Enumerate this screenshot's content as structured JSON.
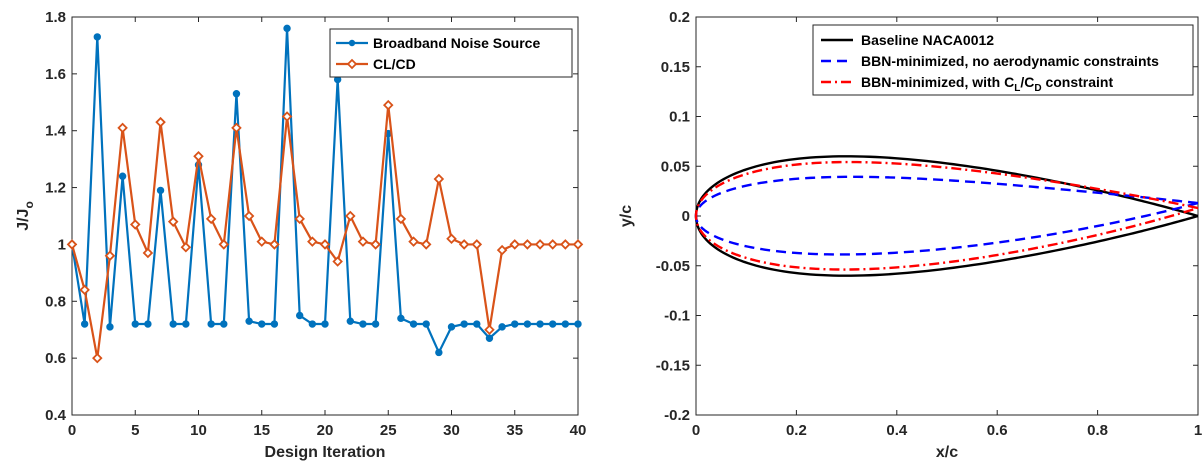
{
  "chart_data": [
    {
      "type": "line",
      "xlabel": "Design Iteration",
      "ylabel": "J/J",
      "ylabel_sub": "o",
      "xlim": [
        0,
        40
      ],
      "ylim": [
        0.4,
        1.8
      ],
      "xticks": [
        "0",
        "5",
        "10",
        "15",
        "20",
        "25",
        "30",
        "35",
        "40"
      ],
      "yticks": [
        "0.4",
        "0.6",
        "0.8",
        "1",
        "1.2",
        "1.4",
        "1.6",
        "1.8"
      ],
      "legend_position": "top-right",
      "series": [
        {
          "name": "Broadband Noise Source",
          "color": "#0072BD",
          "marker": "circle",
          "x": [
            0,
            1,
            2,
            3,
            4,
            5,
            6,
            7,
            8,
            9,
            10,
            11,
            12,
            13,
            14,
            15,
            16,
            17,
            18,
            19,
            20,
            21,
            22,
            23,
            24,
            25,
            26,
            27,
            28,
            29,
            30,
            31,
            32,
            33,
            34,
            35,
            36,
            37,
            38,
            39,
            40
          ],
          "values": [
            1.0,
            0.72,
            1.73,
            0.71,
            1.24,
            0.72,
            0.72,
            1.19,
            0.72,
            0.72,
            1.28,
            0.72,
            0.72,
            1.53,
            0.73,
            0.72,
            0.72,
            1.76,
            0.75,
            0.72,
            0.72,
            1.58,
            0.73,
            0.72,
            0.72,
            1.39,
            0.74,
            0.72,
            0.72,
            0.62,
            0.71,
            0.72,
            0.72,
            0.67,
            0.71,
            0.72,
            0.72,
            0.72,
            0.72,
            0.72,
            0.72
          ]
        },
        {
          "name": "CL/CD",
          "color": "#D95319",
          "marker": "diamond",
          "x": [
            0,
            1,
            2,
            3,
            4,
            5,
            6,
            7,
            8,
            9,
            10,
            11,
            12,
            13,
            14,
            15,
            16,
            17,
            18,
            19,
            20,
            21,
            22,
            23,
            24,
            25,
            26,
            27,
            28,
            29,
            30,
            31,
            32,
            33,
            34,
            35,
            36,
            37,
            38,
            39,
            40
          ],
          "values": [
            1.0,
            0.84,
            0.6,
            0.96,
            1.41,
            1.07,
            0.97,
            1.43,
            1.08,
            0.99,
            1.31,
            1.09,
            1.0,
            1.41,
            1.1,
            1.01,
            1.0,
            1.45,
            1.09,
            1.01,
            1.0,
            0.94,
            1.1,
            1.01,
            1.0,
            1.49,
            1.09,
            1.01,
            1.0,
            1.23,
            1.02,
            1.0,
            1.0,
            0.7,
            0.98,
            1.0,
            1.0,
            1.0,
            1.0,
            1.0,
            1.0
          ]
        }
      ]
    },
    {
      "type": "line",
      "xlabel": "x/c",
      "ylabel": "y/c",
      "xlim": [
        0,
        1
      ],
      "ylim": [
        -0.2,
        0.2
      ],
      "xticks": [
        "0",
        "0.2",
        "0.4",
        "0.6",
        "0.8",
        "1"
      ],
      "yticks": [
        "-0.2",
        "-0.15",
        "-0.1",
        "-0.05",
        "0",
        "0.05",
        "0.1",
        "0.15",
        "0.2"
      ],
      "legend_position": "top-right",
      "series": [
        {
          "name": "Baseline NACA0012",
          "name_parts": [
            "Baseline NACA0012"
          ],
          "color": "#000000",
          "style": "solid",
          "thickness": 0.12,
          "camber": 0.0,
          "camber_pos": 0.4,
          "te_y": 0.0
        },
        {
          "name": "BBN-minimized, no aerodynamic constraints",
          "name_parts": [
            "BBN-minimized, no aerodynamic constraints"
          ],
          "color": "#0000FF",
          "style": "dashed",
          "thickness": 0.078,
          "camber": 0.0,
          "camber_pos": 0.4,
          "te_y": 0.013
        },
        {
          "name": "BBN-minimized, with CL/CD constraint",
          "name_parts": [
            "BBN-minimized, with C",
            "L",
            "/C",
            "D",
            " constraint"
          ],
          "color": "#FF0000",
          "style": "dashdot",
          "thickness": 0.108,
          "camber": 0.0,
          "camber_pos": 0.4,
          "te_y": 0.008
        }
      ]
    }
  ]
}
